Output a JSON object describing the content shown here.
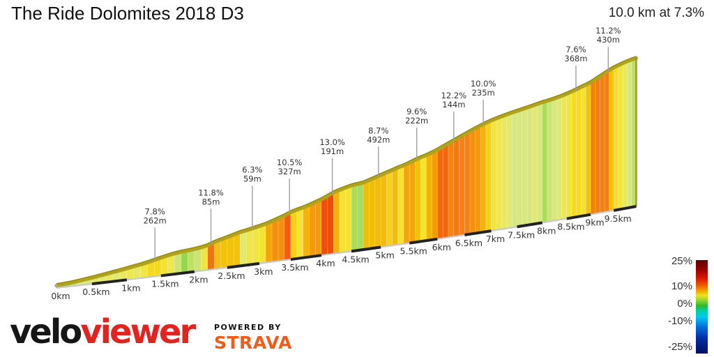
{
  "header": {
    "title": "The Ride Dolomites 2018 D3",
    "summary": "10.0 km at 7.3%"
  },
  "chart_data": {
    "type": "area",
    "title": "The Ride Dolomites 2018 D3",
    "summary_distance_km": 10.0,
    "summary_avg_gradient_pct": 7.3,
    "x_unit": "km",
    "x_range_km": [
      0,
      10
    ],
    "segment_length_km": 0.1,
    "x_tick_km": [
      0,
      0.5,
      1,
      1.5,
      2,
      2.5,
      3,
      3.5,
      4,
      4.5,
      5,
      5.5,
      6,
      6.5,
      7,
      7.5,
      8,
      8.5,
      9,
      9.5
    ],
    "x_tick_labels": [
      "0km",
      "0.5km",
      "1km",
      "1.5km",
      "2km",
      "2.5km",
      "3km",
      "3.5km",
      "4km",
      "4.5km",
      "5km",
      "5.5km",
      "6km",
      "6.5km",
      "7km",
      "7.5km",
      "8km",
      "8.5km",
      "9km",
      "9.5km"
    ],
    "gradients_pct_per_100m": [
      2.0,
      3.0,
      4.0,
      4.5,
      4.5,
      5.0,
      5.0,
      5.5,
      5.0,
      5.5,
      6.0,
      5.5,
      6.5,
      7.8,
      7.8,
      7.0,
      6.0,
      4.0,
      2.5,
      3.5,
      4.0,
      6.5,
      11.8,
      8.5,
      8.5,
      8.5,
      8.5,
      5.0,
      6.3,
      6.5,
      7.0,
      9.5,
      10.5,
      10.5,
      12.5,
      8.0,
      7.0,
      9.0,
      10.0,
      10.0,
      13.0,
      13.0,
      9.0,
      7.0,
      7.0,
      3.0,
      3.0,
      8.7,
      8.7,
      8.7,
      8.7,
      8.0,
      8.7,
      7.0,
      9.6,
      9.6,
      8.5,
      7.0,
      9.0,
      10.0,
      12.2,
      12.2,
      11.0,
      11.5,
      11.0,
      11.0,
      10.5,
      10.0,
      9.0,
      8.0,
      6.5,
      6.0,
      5.5,
      5.0,
      4.5,
      4.5,
      4.5,
      4.5,
      5.0,
      4.5,
      3.0,
      4.0,
      4.5,
      5.0,
      6.0,
      6.5,
      7.6,
      7.6,
      7.0,
      8.5,
      11.2,
      11.2,
      11.2,
      11.2,
      8.5,
      7.5,
      6.5,
      5.5,
      4.5,
      3.5
    ],
    "total_climb_m": 730,
    "annotations": [
      {
        "km": 1.41,
        "gradient": "7.8%",
        "length": "262m",
        "gap": 52
      },
      {
        "km": 2.25,
        "gradient": "11.8%",
        "length": "85m",
        "gap": 56
      },
      {
        "km": 2.89,
        "gradient": "6.3%",
        "length": "59m",
        "gap": 67
      },
      {
        "km": 3.48,
        "gradient": "10.5%",
        "length": "327m",
        "gap": 55
      },
      {
        "km": 4.18,
        "gradient": "13.0%",
        "length": "191m",
        "gap": 56
      },
      {
        "km": 4.96,
        "gradient": "8.7%",
        "length": "492m",
        "gap": 48
      },
      {
        "km": 5.63,
        "gradient": "9.6%",
        "length": "222m",
        "gap": 51
      },
      {
        "km": 6.3,
        "gradient": "12.2%",
        "length": "144m",
        "gap": 47
      },
      {
        "km": 6.85,
        "gradient": "10.0%",
        "length": "235m",
        "gap": 41
      },
      {
        "km": 8.69,
        "gradient": "7.6%",
        "length": "368m",
        "gap": 40
      },
      {
        "km": 9.38,
        "gradient": "11.2%",
        "length": "430m",
        "gap": 40
      }
    ],
    "legend": {
      "labels": [
        "25%",
        "10%",
        "0%",
        "-10%",
        "-25%"
      ],
      "min_pct": -25,
      "max_pct": 25,
      "position": "bottom-right"
    },
    "gradient_color_stops": [
      [
        -25,
        "#001878"
      ],
      [
        -10,
        "#00c8f0"
      ],
      [
        -1,
        "#00c850"
      ],
      [
        0,
        "#2db92d"
      ],
      [
        1.5,
        "#6ecf3a"
      ],
      [
        2.5,
        "#95d84e"
      ],
      [
        3.5,
        "#bfe065"
      ],
      [
        4.5,
        "#d9e87e"
      ],
      [
        5.2,
        "#e6e96e"
      ],
      [
        6,
        "#eee74f"
      ],
      [
        7,
        "#f4e332"
      ],
      [
        7.8,
        "#f5d91d"
      ],
      [
        8.5,
        "#f3c20d"
      ],
      [
        9.2,
        "#f4ad06"
      ],
      [
        10,
        "#f59b0b"
      ],
      [
        11,
        "#f58312"
      ],
      [
        12,
        "#f36c0f"
      ],
      [
        13,
        "#ef4e08"
      ],
      [
        14.5,
        "#e03205"
      ],
      [
        17,
        "#b81500"
      ],
      [
        25,
        "#640000"
      ]
    ],
    "grid": false
  },
  "footer": {
    "brand_black": "velo",
    "brand_red": "viewer",
    "powered_by": "POWERED BY",
    "strava": "STRAVA"
  },
  "colors": {
    "brand_red": "#e2231f",
    "strava_orange": "#f25c19",
    "top_surface": "#b1a41c",
    "baseline_silver": "#c9c9c9",
    "baseline_dash": "#222222",
    "callout_line": "#9e9e9e",
    "text": "#333333"
  }
}
